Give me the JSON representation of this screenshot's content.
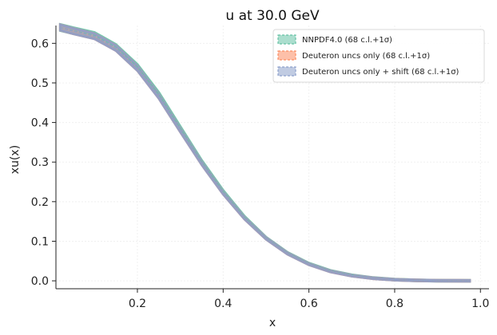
{
  "chart_data": {
    "type": "line",
    "title": "u at 30.0 GeV",
    "xlabel": "x",
    "ylabel": "xu(x)",
    "xlim": [
      0.01,
      1.02
    ],
    "ylim": [
      -0.02,
      0.645
    ],
    "xticks": [
      0.2,
      0.4,
      0.6,
      0.8,
      1.0
    ],
    "xtick_labels": [
      "0.2",
      "0.4",
      "0.6",
      "0.8",
      "1.0"
    ],
    "yticks": [
      0.0,
      0.1,
      0.2,
      0.3,
      0.4,
      0.5,
      0.6
    ],
    "ytick_labels": [
      "0.0",
      "0.1",
      "0.2",
      "0.3",
      "0.4",
      "0.5",
      "0.6"
    ],
    "grid": true,
    "legend_position": "top-right",
    "x": [
      0.02,
      0.05,
      0.1,
      0.15,
      0.2,
      0.25,
      0.3,
      0.35,
      0.4,
      0.45,
      0.5,
      0.55,
      0.6,
      0.65,
      0.7,
      0.75,
      0.8,
      0.85,
      0.9,
      0.95,
      0.975
    ],
    "series": [
      {
        "name": "NNPDF4.0 (68 c.l.+1σ)",
        "color": "#66c2a5",
        "values": [
          0.64,
          0.632,
          0.62,
          0.59,
          0.54,
          0.47,
          0.385,
          0.3,
          0.225,
          0.16,
          0.108,
          0.07,
          0.043,
          0.025,
          0.014,
          0.007,
          0.003,
          0.0012,
          0.0004,
          0.0001,
          0.0
        ],
        "band": 0.008
      },
      {
        "name": "Deuteron uncs only (68 c.l.+1σ)",
        "color": "#fc8d62",
        "values": [
          0.64,
          0.631,
          0.618,
          0.588,
          0.537,
          0.466,
          0.381,
          0.297,
          0.222,
          0.158,
          0.107,
          0.069,
          0.042,
          0.024,
          0.013,
          0.0065,
          0.0028,
          0.0011,
          0.0003,
          0.0001,
          0.0
        ],
        "band": 0.007
      },
      {
        "name": "Deuteron uncs only + shift (68 c.l.+1σ)",
        "color": "#8da0cb",
        "values": [
          0.64,
          0.631,
          0.618,
          0.588,
          0.537,
          0.466,
          0.381,
          0.297,
          0.222,
          0.158,
          0.107,
          0.069,
          0.042,
          0.024,
          0.013,
          0.0065,
          0.0028,
          0.0011,
          0.0003,
          0.0001,
          0.0
        ],
        "band": 0.007
      }
    ]
  }
}
